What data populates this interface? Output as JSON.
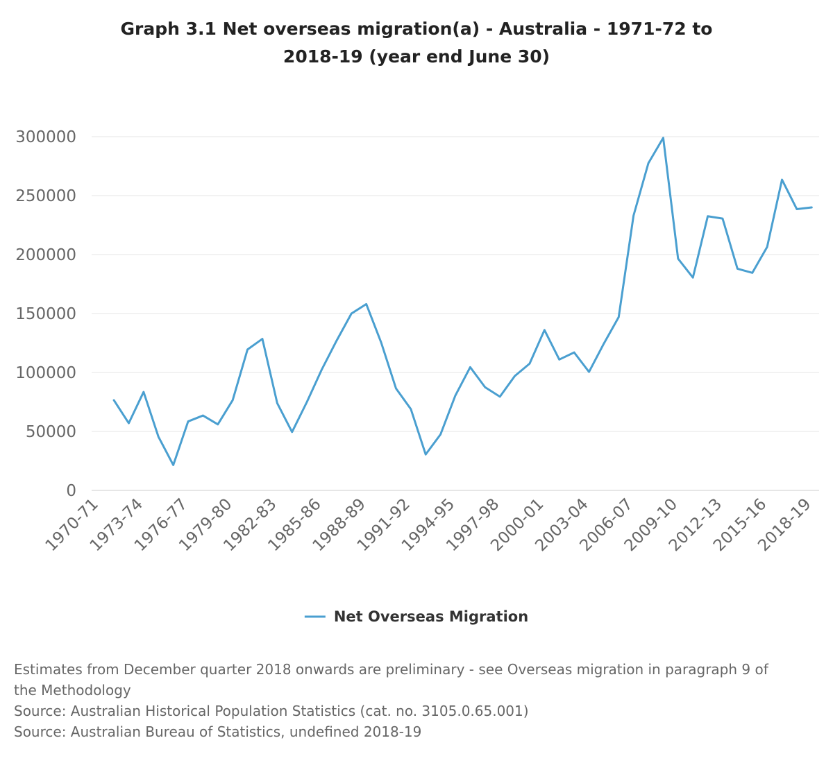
{
  "chart_data": {
    "type": "line",
    "title_line1": "Graph 3.1 Net overseas migration(a) - Australia - 1971-72 to",
    "title_line2": "2018-19 (year end June 30)",
    "categories": [
      "1970-71",
      "1971-72",
      "1972-73",
      "1973-74",
      "1974-75",
      "1975-76",
      "1976-77",
      "1977-78",
      "1978-79",
      "1979-80",
      "1980-81",
      "1981-82",
      "1982-83",
      "1983-84",
      "1984-85",
      "1985-86",
      "1986-87",
      "1987-88",
      "1988-89",
      "1989-90",
      "1990-91",
      "1991-92",
      "1992-93",
      "1993-94",
      "1994-95",
      "1995-96",
      "1996-97",
      "1997-98",
      "1998-99",
      "1999-00",
      "2000-01",
      "2001-02",
      "2002-03",
      "2003-04",
      "2004-05",
      "2005-06",
      "2006-07",
      "2007-08",
      "2008-09",
      "2009-10",
      "2010-11",
      "2011-12",
      "2012-13",
      "2013-14",
      "2014-15",
      "2015-16",
      "2016-17",
      "2017-18",
      "2018-19"
    ],
    "tick_labels": [
      "1970-71",
      "1973-74",
      "1976-77",
      "1979-80",
      "1982-83",
      "1985-86",
      "1988-89",
      "1991-92",
      "1994-95",
      "1997-98",
      "2000-01",
      "2003-04",
      "2006-07",
      "2009-10",
      "2012-13",
      "2015-16",
      "2018-19"
    ],
    "series": [
      {
        "name": "Net Overseas Migration",
        "color": "#4a9fd0",
        "values": [
          null,
          76500,
          57000,
          83500,
          45500,
          21500,
          58500,
          63500,
          56000,
          76500,
          119500,
          128500,
          74000,
          49500,
          75000,
          102500,
          127000,
          150000,
          158000,
          125500,
          86500,
          69000,
          30500,
          47500,
          80500,
          104500,
          87500,
          79500,
          97000,
          107500,
          136000,
          111000,
          117000,
          100500,
          124500,
          147000,
          233000,
          277500,
          299000,
          196500,
          180500,
          232500,
          230500,
          188000,
          184500,
          206500,
          263500,
          238500,
          240000
        ]
      }
    ],
    "y_ticks": [
      0,
      50000,
      100000,
      150000,
      200000,
      250000,
      300000
    ],
    "ylim": [
      0,
      300000
    ],
    "xlabel": "",
    "ylabel": "",
    "grid": true,
    "legend_position": "bottom-center"
  },
  "footnotes": [
    "Estimates from December quarter 2018 onwards are preliminary - see Overseas migration in paragraph 9 of",
    "the Methodology",
    "Source: Australian Historical Population Statistics (cat. no. 3105.0.65.001)",
    "Source: Australian Bureau of Statistics, undefined 2018-19"
  ]
}
